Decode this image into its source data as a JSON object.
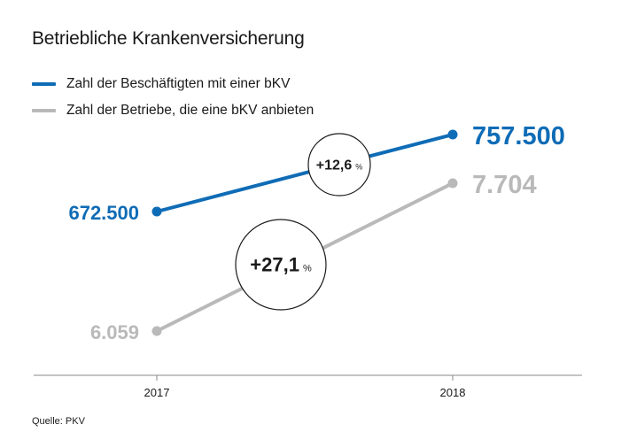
{
  "chart_data": {
    "type": "line",
    "title": "Betriebliche Krankenversicherung",
    "categories": [
      "2017",
      "2018"
    ],
    "series": [
      {
        "name": "Zahl der Beschäftigten mit einer bKV",
        "values": [
          672500,
          757500
        ],
        "value_labels": [
          "672.500",
          "757.500"
        ],
        "change_label": "+12,6",
        "change_unit": "%",
        "color": "#0f6cb6"
      },
      {
        "name": "Zahl der Betriebe, die eine bKV anbieten",
        "values": [
          6059,
          7704
        ],
        "value_labels": [
          "6.059",
          "7.704"
        ],
        "change_label": "+27,1",
        "change_unit": "%",
        "color": "#b9b9b9"
      }
    ],
    "xlabel": "",
    "ylabel": "",
    "grid": false,
    "legend": "top-left"
  },
  "source": "Quelle: PKV"
}
